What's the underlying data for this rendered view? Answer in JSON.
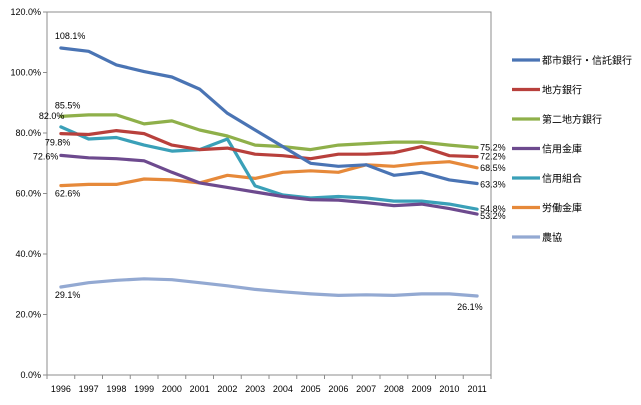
{
  "chart_data": {
    "type": "line",
    "title": "",
    "xlabel": "",
    "ylabel": "",
    "ylim": [
      0,
      120
    ],
    "y_tick_labels": [
      "0.0%",
      "20.0%",
      "40.0%",
      "60.0%",
      "80.0%",
      "100.0%",
      "120.0%"
    ],
    "y_ticks": [
      0,
      20,
      40,
      60,
      80,
      100,
      120
    ],
    "categories": [
      "1996",
      "1997",
      "1998",
      "1999",
      "2000",
      "2001",
      "2002",
      "2003",
      "2004",
      "2005",
      "2006",
      "2007",
      "2008",
      "2009",
      "2010",
      "2011"
    ],
    "grid": false,
    "legend_position": "right",
    "series": [
      {
        "name": "都市銀行・信託銀行",
        "color": "#4a74b4",
        "values": [
          108.1,
          107.0,
          102.5,
          100.3,
          98.5,
          94.5,
          86.5,
          81.0,
          75.5,
          70.0,
          69.0,
          69.5,
          66.0,
          67.0,
          64.5,
          63.3
        ]
      },
      {
        "name": "地方銀行",
        "color": "#b8403c",
        "values": [
          79.8,
          79.5,
          80.8,
          79.8,
          76.0,
          74.5,
          75.0,
          73.0,
          72.5,
          71.5,
          73.0,
          73.0,
          73.5,
          75.5,
          72.5,
          72.2
        ]
      },
      {
        "name": "第二地方銀行",
        "color": "#8fb04a",
        "values": [
          85.5,
          86.0,
          86.0,
          83.0,
          84.0,
          81.0,
          79.0,
          76.0,
          75.5,
          74.5,
          76.0,
          76.5,
          77.0,
          77.0,
          76.0,
          75.2
        ]
      },
      {
        "name": "信用金庫",
        "color": "#6d4a8e",
        "values": [
          72.6,
          71.8,
          71.5,
          70.8,
          67.0,
          63.5,
          62.0,
          60.5,
          59.0,
          58.0,
          57.8,
          57.0,
          56.0,
          56.5,
          55.0,
          53.2
        ]
      },
      {
        "name": "信用組合",
        "color": "#3aa0b8",
        "values": [
          82.0,
          78.0,
          78.5,
          76.0,
          74.0,
          74.5,
          78.0,
          62.5,
          59.5,
          58.5,
          59.0,
          58.5,
          57.5,
          57.5,
          56.5,
          54.8
        ]
      },
      {
        "name": "労働金庫",
        "color": "#e6893a",
        "values": [
          62.6,
          63.0,
          63.0,
          64.8,
          64.5,
          63.5,
          66.0,
          65.0,
          67.0,
          67.5,
          67.0,
          69.5,
          69.0,
          70.0,
          70.5,
          68.5
        ]
      },
      {
        "name": "農協",
        "color": "#93a9d2",
        "values": [
          29.1,
          30.5,
          31.3,
          31.8,
          31.5,
          30.5,
          29.5,
          28.3,
          27.5,
          26.8,
          26.3,
          26.5,
          26.3,
          26.8,
          26.8,
          26.1
        ]
      }
    ],
    "data_labels": [
      {
        "series": 0,
        "index": 0,
        "text": "108.1%"
      },
      {
        "series": 2,
        "index": 0,
        "text": "85.5%"
      },
      {
        "series": 4,
        "index": 0,
        "text": "82.0%"
      },
      {
        "series": 1,
        "index": 0,
        "text": "79.8%"
      },
      {
        "series": 3,
        "index": 0,
        "text": "72.6%"
      },
      {
        "series": 5,
        "index": 0,
        "text": "62.6%"
      },
      {
        "series": 6,
        "index": 0,
        "text": "29.1%"
      },
      {
        "series": 2,
        "index": 15,
        "text": "75.2%"
      },
      {
        "series": 1,
        "index": 15,
        "text": "72.2%"
      },
      {
        "series": 5,
        "index": 15,
        "text": "68.5%"
      },
      {
        "series": 0,
        "index": 15,
        "text": "63.3%"
      },
      {
        "series": 4,
        "index": 15,
        "text": "54.8%"
      },
      {
        "series": 3,
        "index": 15,
        "text": "53.2%"
      },
      {
        "series": 6,
        "index": 15,
        "text": "26.1%"
      }
    ]
  }
}
